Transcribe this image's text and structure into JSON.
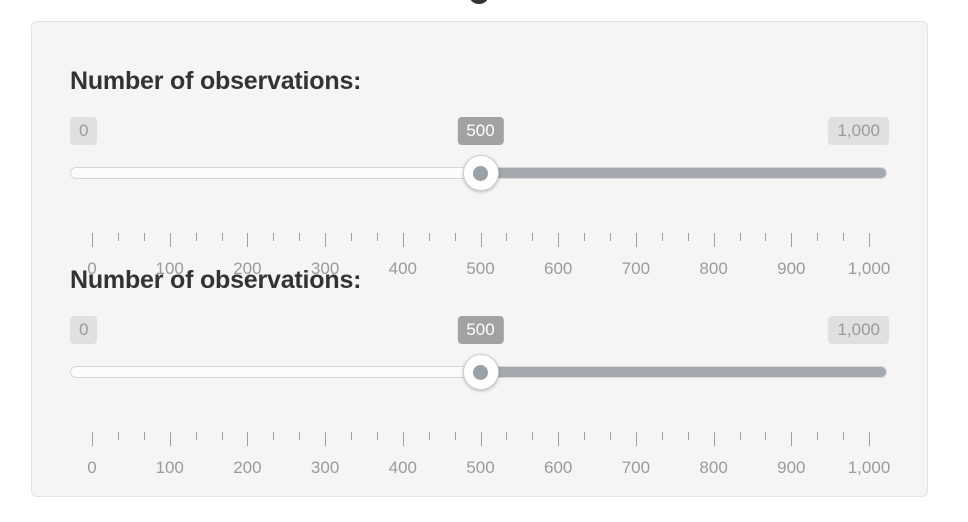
{
  "sliders": [
    {
      "label": "Number of observations:",
      "min_label": "0",
      "max_label": "1,000",
      "current_label": "500",
      "min": 0,
      "max": 1000,
      "value": 500,
      "tick_labels": [
        "0",
        "100",
        "200",
        "300",
        "400",
        "500",
        "600",
        "700",
        "800",
        "900",
        "1,000"
      ]
    },
    {
      "label": "Number of observations:",
      "min_label": "0",
      "max_label": "1,000",
      "current_label": "500",
      "min": 0,
      "max": 1000,
      "value": 500,
      "tick_labels": [
        "0",
        "100",
        "200",
        "300",
        "400",
        "500",
        "600",
        "700",
        "800",
        "900",
        "1,000"
      ]
    }
  ],
  "colors": {
    "fill": "#a3a9ae",
    "badge_current": "#a2a2a2",
    "badge_edge": "#e0e0e0"
  }
}
